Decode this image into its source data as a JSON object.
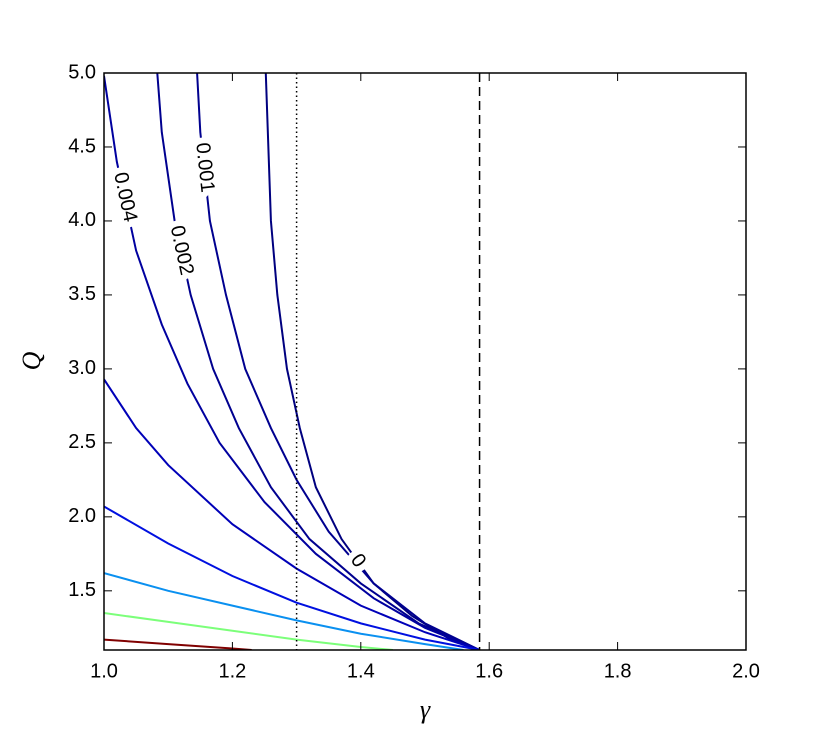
{
  "chart_data": {
    "type": "contour",
    "xlabel": "γ",
    "ylabel": "Q",
    "xlim": [
      1.0,
      2.0
    ],
    "xticks": [
      {
        "value": 1.0,
        "label": "1.0"
      },
      {
        "value": 1.2,
        "label": "1.2"
      },
      {
        "value": 1.4,
        "label": "1.4"
      },
      {
        "value": 1.6,
        "label": "1.6"
      },
      {
        "value": 1.8,
        "label": "1.8"
      },
      {
        "value": 2.0,
        "label": "2.0"
      }
    ],
    "ylim": [
      1.1,
      5.0
    ],
    "yticks": [
      {
        "value": 1.5,
        "label": "1.5"
      },
      {
        "value": 2.0,
        "label": "2.0"
      },
      {
        "value": 2.5,
        "label": "2.5"
      },
      {
        "value": 3.0,
        "label": "3.0"
      },
      {
        "value": 3.5,
        "label": "3.5"
      },
      {
        "value": 4.0,
        "label": "4.0"
      },
      {
        "value": 4.5,
        "label": "4.5"
      },
      {
        "value": 5.0,
        "label": "5.0"
      }
    ],
    "series": [
      {
        "label": "0",
        "color": "#00007f",
        "x": [
          1.252,
          1.26,
          1.27,
          1.285,
          1.305,
          1.33,
          1.37,
          1.42,
          1.48,
          1.54,
          1.585
        ],
        "y": [
          5.0,
          4.0,
          3.5,
          3.0,
          2.6,
          2.2,
          1.85,
          1.55,
          1.33,
          1.17,
          1.1
        ]
      },
      {
        "label": "0.001",
        "color": "#00008f",
        "x": [
          1.145,
          1.15,
          1.165,
          1.19,
          1.22,
          1.26,
          1.3,
          1.35,
          1.42,
          1.5,
          1.585
        ],
        "y": [
          5.0,
          4.6,
          4.0,
          3.5,
          3.0,
          2.6,
          2.25,
          1.9,
          1.55,
          1.28,
          1.1
        ]
      },
      {
        "label": "0.002",
        "color": "#00008f",
        "x": [
          1.083,
          1.09,
          1.11,
          1.135,
          1.17,
          1.21,
          1.26,
          1.32,
          1.4,
          1.49,
          1.585
        ],
        "y": [
          5.0,
          4.6,
          4.0,
          3.5,
          3.0,
          2.6,
          2.2,
          1.85,
          1.55,
          1.28,
          1.1
        ]
      },
      {
        "label": "0.004",
        "color": "#00009f",
        "x": [
          1.0,
          1.02,
          1.05,
          1.09,
          1.13,
          1.18,
          1.25,
          1.33,
          1.42,
          1.5,
          1.585
        ],
        "y": [
          4.98,
          4.4,
          3.8,
          3.3,
          2.9,
          2.5,
          2.1,
          1.75,
          1.45,
          1.25,
          1.1
        ]
      },
      {
        "color": "#0000b8",
        "x": [
          1.0,
          1.05,
          1.1,
          1.2,
          1.3,
          1.4,
          1.5,
          1.585
        ],
        "y": [
          2.93,
          2.6,
          2.35,
          1.95,
          1.65,
          1.4,
          1.22,
          1.1
        ]
      },
      {
        "color": "#0010e0",
        "x": [
          1.0,
          1.1,
          1.2,
          1.3,
          1.4,
          1.5,
          1.585
        ],
        "y": [
          2.07,
          1.82,
          1.6,
          1.42,
          1.28,
          1.17,
          1.1
        ]
      },
      {
        "color": "#0a90f0",
        "x": [
          1.0,
          1.1,
          1.2,
          1.3,
          1.4,
          1.5,
          1.56
        ],
        "y": [
          1.62,
          1.5,
          1.4,
          1.3,
          1.21,
          1.14,
          1.1
        ]
      },
      {
        "color": "#7cff7a",
        "x": [
          1.0,
          1.1,
          1.2,
          1.3,
          1.4,
          1.45
        ],
        "y": [
          1.35,
          1.29,
          1.23,
          1.17,
          1.12,
          1.1
        ]
      },
      {
        "color": "#800000",
        "x": [
          1.0,
          1.1,
          1.2,
          1.23
        ],
        "y": [
          1.17,
          1.14,
          1.11,
          1.1
        ]
      }
    ],
    "vlines": [
      {
        "x": 1.3,
        "style": "dotted"
      },
      {
        "x": 1.585,
        "style": "dashed"
      }
    ]
  }
}
